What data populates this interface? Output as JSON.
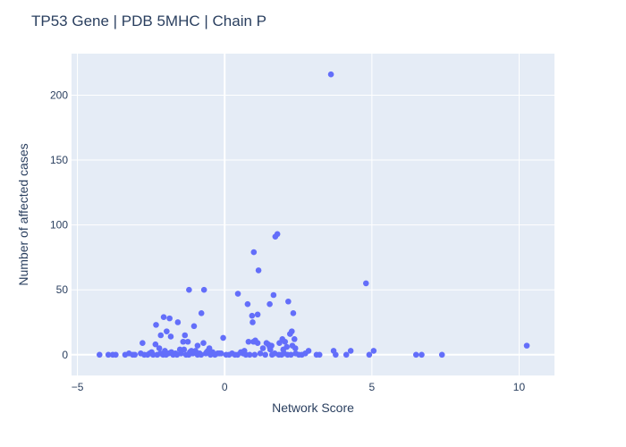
{
  "chart_data": {
    "type": "scatter",
    "title": "TP53 Gene | PDB 5MHC | Chain P",
    "xlabel": "Network Score",
    "ylabel": "Number of affected cases",
    "xlim": [
      -5.2,
      11.2
    ],
    "ylim": [
      -16,
      232
    ],
    "xticks": [
      -5,
      0,
      5,
      10
    ],
    "yticks": [
      0,
      50,
      100,
      150,
      200
    ],
    "xtick_labels": [
      "−5",
      "0",
      "5",
      "10"
    ],
    "ytick_labels": [
      "0",
      "50",
      "100",
      "150",
      "200"
    ],
    "grid": true,
    "colors": {
      "marker": "#636efa",
      "plot_bg": "#e5ecf6",
      "grid": "#ffffff",
      "text": "#2a3f5f"
    },
    "x": [
      3.61,
      4.8,
      1.79,
      1.72,
      0.99,
      1.15,
      1.66,
      0.45,
      2.16,
      0.78,
      1.53,
      2.33,
      1.12,
      0.93,
      -1.21,
      -0.7,
      -0.79,
      -1.04,
      -2.07,
      -2.33,
      -1.59,
      -1.87,
      -1.97,
      -2.17,
      -1.83,
      -1.35,
      -1.41,
      -1.25,
      -2.79,
      -2.35,
      -0.72,
      -0.52,
      -0.92,
      -1.13,
      -1.38,
      -0.05,
      2.28,
      2.22,
      2.37,
      2.3,
      1.96,
      1.86,
      2.05,
      2.11,
      1.99,
      2.4,
      0.81,
      0.98,
      1.12,
      1.04,
      1.48,
      1.59,
      1.42,
      1.53,
      1.55,
      1.3,
      0.95,
      0.67,
      0.55,
      -2.48,
      -2.22,
      -2.03,
      -1.81,
      -1.67,
      -1.52,
      -1.18,
      -0.99,
      -0.85,
      -0.61,
      -0.57,
      -0.41,
      -0.24,
      -0.12,
      -4.25,
      -3.95,
      -3.8,
      -3.7,
      -3.38,
      -3.25,
      -3.12,
      -3.05,
      -2.85,
      -2.73,
      -2.62,
      -2.55,
      -2.43,
      -2.29,
      -2.18,
      -2.09,
      -1.99,
      -1.91,
      -1.75,
      -1.62,
      -1.48,
      -1.31,
      -1.22,
      -1.08,
      -0.92,
      -0.8,
      -0.64,
      -0.48,
      -0.33,
      -0.18,
      0.05,
      0.15,
      0.25,
      0.35,
      0.44,
      0.62,
      0.72,
      0.85,
      1.02,
      1.21,
      1.38,
      1.61,
      1.7,
      1.84,
      1.93,
      2.02,
      2.14,
      2.25,
      2.41,
      2.52,
      2.62,
      2.74,
      2.85,
      3.12,
      3.22,
      3.7,
      3.77,
      4.13,
      4.28,
      4.91,
      5.06,
      6.5,
      6.69,
      7.38,
      10.26
    ],
    "y": [
      216,
      55,
      93,
      91,
      79,
      65,
      46,
      47,
      41,
      39,
      39,
      32,
      31,
      30,
      50,
      50,
      32,
      22,
      29,
      23,
      25,
      28,
      18,
      15,
      14,
      15,
      10,
      10,
      9,
      8,
      9,
      5,
      7,
      3,
      4,
      13,
      18,
      16,
      12,
      7,
      12,
      9,
      10,
      6,
      4,
      5,
      10,
      10,
      9,
      11,
      8,
      7,
      9,
      6,
      4,
      5,
      25,
      3,
      2,
      2,
      5,
      3,
      2,
      1,
      4,
      2,
      3,
      1,
      2,
      3,
      2,
      1,
      1,
      0,
      0,
      0,
      0,
      0,
      1,
      0,
      0,
      1,
      0,
      0,
      1,
      0,
      0,
      1,
      0,
      0,
      1,
      0,
      0,
      1,
      0,
      0,
      1,
      0,
      0,
      1,
      0,
      0,
      1,
      0,
      0,
      1,
      0,
      0,
      1,
      0,
      0,
      0,
      1,
      0,
      0,
      1,
      0,
      0,
      1,
      0,
      0,
      1,
      0,
      0,
      1,
      3,
      0,
      0,
      3,
      0,
      0,
      3,
      0,
      3,
      0,
      0,
      0,
      7
    ]
  }
}
